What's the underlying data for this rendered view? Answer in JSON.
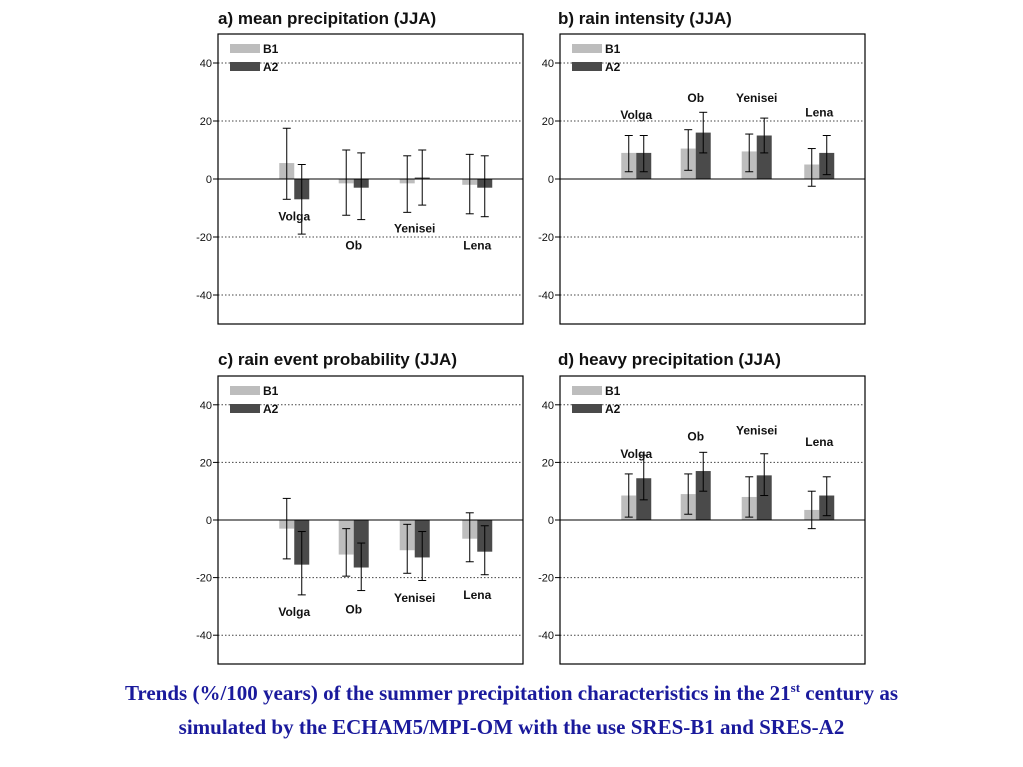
{
  "caption": {
    "part1": "Trends (%/100 years) of the summer precipitation characteristics in the 21",
    "sup": "st",
    "part2": " century as",
    "line2": "simulated by the ECHAM5/MPI-OM with the use SRES-B1 and SRES-A2"
  },
  "colors": {
    "B1": "#bdbdbd",
    "A2": "#4a4a4a",
    "caption": "#1a1a9c"
  },
  "chart_data": [
    {
      "type": "bar",
      "title": "a) mean precipitation (JJA)",
      "categories": [
        "Volga",
        "Ob",
        "Yenisei",
        "Lena"
      ],
      "ylim": [
        -50,
        50
      ],
      "yticks": [
        40,
        20,
        0,
        -20,
        -40
      ],
      "grid": "dotted-horizontal",
      "legend": "top-left",
      "series": [
        {
          "name": "B1",
          "values": [
            5.5,
            -1.5,
            -1.5,
            -2
          ],
          "err_low": [
            -7,
            -12.5,
            -11.5,
            -12
          ],
          "err_high": [
            17.5,
            10,
            8,
            8.5
          ]
        },
        {
          "name": "A2",
          "values": [
            -7,
            -3,
            0.5,
            -3
          ],
          "err_low": [
            -19,
            -14,
            -9,
            -13
          ],
          "err_high": [
            5,
            9,
            10,
            8
          ]
        }
      ],
      "labels": [
        "Volga",
        "Ob",
        "Yenisei",
        "Lena"
      ],
      "label_y": [
        -13,
        -23,
        -17,
        -23
      ]
    },
    {
      "type": "bar",
      "title": "b) rain intensity (JJA)",
      "categories": [
        "Volga",
        "Ob",
        "Yenisei",
        "Lena"
      ],
      "ylim": [
        -50,
        50
      ],
      "yticks": [
        40,
        20,
        0,
        -20,
        -40
      ],
      "grid": "dotted-horizontal",
      "legend": "top-left",
      "series": [
        {
          "name": "B1",
          "values": [
            9,
            10.5,
            9.5,
            5
          ],
          "err_low": [
            2.5,
            3,
            2.5,
            -2.5
          ],
          "err_high": [
            15,
            17,
            15.5,
            10.5
          ]
        },
        {
          "name": "A2",
          "values": [
            9,
            16,
            15,
            9
          ],
          "err_low": [
            2.5,
            9,
            9,
            1.5
          ],
          "err_high": [
            15,
            23,
            21,
            15
          ]
        }
      ],
      "labels": [
        "Volga",
        "Ob",
        "Yenisei",
        "Lena"
      ],
      "label_y": [
        22,
        28,
        28,
        23
      ]
    },
    {
      "type": "bar",
      "title": "c) rain event probability (JJA)",
      "categories": [
        "Volga",
        "Ob",
        "Yenisei",
        "Lena"
      ],
      "ylim": [
        -50,
        50
      ],
      "yticks": [
        40,
        20,
        0,
        -20,
        -40
      ],
      "grid": "dotted-horizontal",
      "legend": "top-left",
      "series": [
        {
          "name": "B1",
          "values": [
            -3,
            -12,
            -10.5,
            -6.5
          ],
          "err_low": [
            -13.5,
            -19.5,
            -18.5,
            -14.5
          ],
          "err_high": [
            7.5,
            -3,
            -1.5,
            2.5
          ]
        },
        {
          "name": "A2",
          "values": [
            -15.5,
            -16.5,
            -13,
            -11
          ],
          "err_low": [
            -26,
            -24.5,
            -21,
            -19
          ],
          "err_high": [
            -4,
            -8,
            -4,
            -2
          ]
        }
      ],
      "labels": [
        "Volga",
        "Ob",
        "Yenisei",
        "Lena"
      ],
      "label_y": [
        -32,
        -31,
        -27,
        -26
      ]
    },
    {
      "type": "bar",
      "title": "d) heavy precipitation (JJA)",
      "categories": [
        "Volga",
        "Ob",
        "Yenisei",
        "Lena"
      ],
      "ylim": [
        -50,
        50
      ],
      "yticks": [
        40,
        20,
        0,
        -20,
        -40
      ],
      "grid": "dotted-horizontal",
      "legend": "top-left",
      "series": [
        {
          "name": "B1",
          "values": [
            8.5,
            9,
            8,
            3.5
          ],
          "err_low": [
            1,
            2,
            1,
            -3
          ],
          "err_high": [
            16,
            16,
            15,
            10
          ]
        },
        {
          "name": "A2",
          "values": [
            14.5,
            17,
            15.5,
            8.5
          ],
          "err_low": [
            7,
            10,
            8.5,
            1.5
          ],
          "err_high": [
            22.5,
            23.5,
            23,
            15
          ]
        }
      ],
      "labels": [
        "Volga",
        "Ob",
        "Yenisei",
        "Lena"
      ],
      "label_y": [
        23,
        29,
        31,
        27
      ]
    }
  ]
}
